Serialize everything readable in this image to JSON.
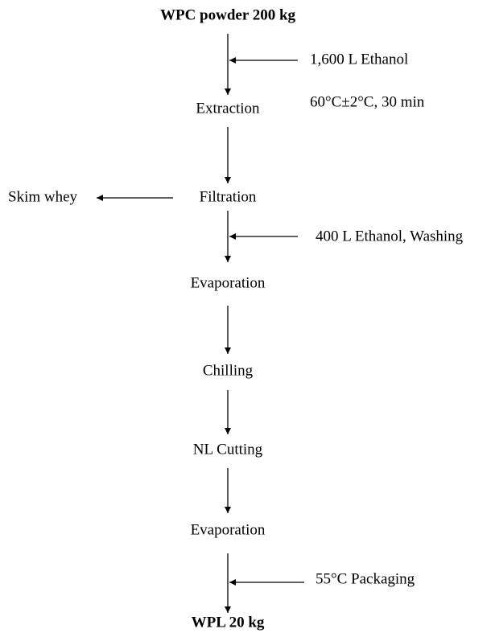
{
  "nodes": [
    {
      "label": "WPC powder 200 kg"
    },
    {
      "label": "Extraction"
    },
    {
      "label": "Filtration"
    },
    {
      "label": "Evaporation"
    },
    {
      "label": "Chilling"
    },
    {
      "label": "NL Cutting"
    },
    {
      "label": "Evaporation"
    },
    {
      "label": "WPL 20 kg"
    }
  ],
  "inputs": [
    {
      "label": "1,600 L Ethanol"
    },
    {
      "label": "400 L Ethanol, Washing"
    },
    {
      "label": "55°C Packaging"
    }
  ],
  "conditions": [
    {
      "label": "60°C±2°C, 30 min"
    }
  ],
  "outputs": [
    {
      "label": "Skim whey"
    }
  ]
}
